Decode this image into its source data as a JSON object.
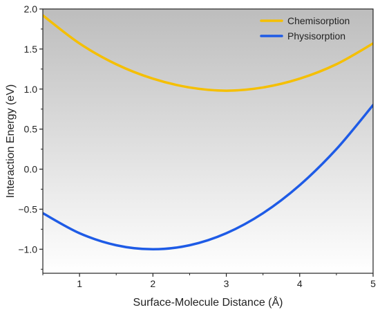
{
  "chart_data": {
    "type": "line",
    "title": "",
    "xlabel": "Surface-Molecule Distance (Å)",
    "ylabel": "Interaction Energy (eV)",
    "xlim": [
      0.5,
      5.0
    ],
    "ylim": [
      -1.3,
      2.0
    ],
    "x_ticks": [
      1,
      2,
      3,
      4,
      5
    ],
    "y_ticks": [
      -1.0,
      -0.5,
      0.0,
      0.5,
      1.0,
      1.5,
      2.0
    ],
    "x_tick_labels": [
      "1",
      "2",
      "3",
      "4",
      "5"
    ],
    "y_tick_labels": [
      "−1.0",
      "−0.5",
      "0.0",
      "0.5",
      "1.0",
      "1.5",
      "2.0"
    ],
    "grid": false,
    "legend_position": "top-right",
    "background": "vertical gradient, grey at top to white at bottom",
    "series": [
      {
        "name": "Chemisorption",
        "color": "#F5BF00",
        "x": [
          0.5,
          1.0,
          1.5,
          2.0,
          2.5,
          3.0,
          3.5,
          4.0,
          4.5,
          5.0
        ],
        "y": [
          1.92,
          1.57,
          1.31,
          1.13,
          1.02,
          0.98,
          1.02,
          1.13,
          1.31,
          1.57
        ]
      },
      {
        "name": "Physisorption",
        "color": "#1E5BE6",
        "x": [
          0.5,
          1.0,
          1.5,
          2.0,
          2.5,
          3.0,
          3.5,
          4.0,
          4.5,
          5.0
        ],
        "y": [
          -0.55,
          -0.8,
          -0.95,
          -1.0,
          -0.95,
          -0.8,
          -0.55,
          -0.2,
          0.25,
          0.8
        ]
      }
    ]
  }
}
